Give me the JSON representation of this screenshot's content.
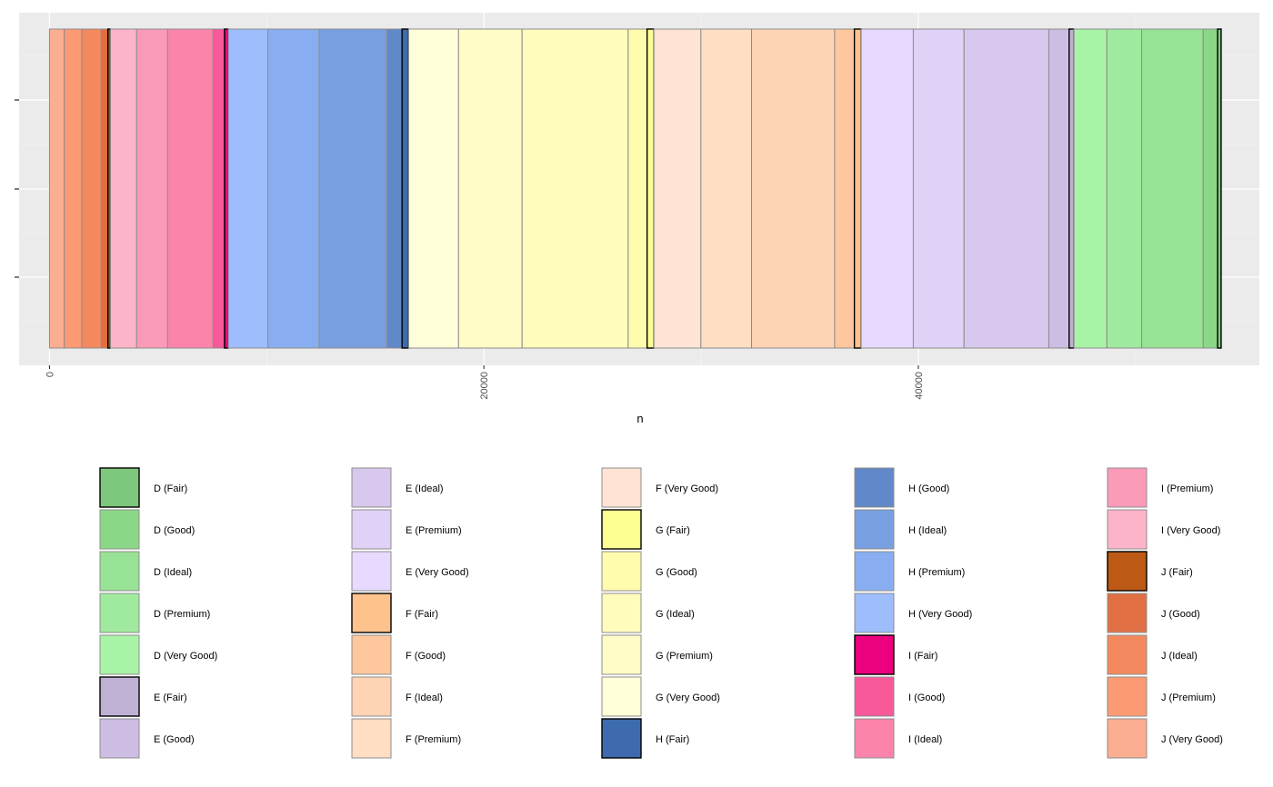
{
  "chart_data": {
    "type": "bar",
    "orientation": "horizontal-stacked",
    "xlabel": "n",
    "ylabel": "",
    "xlim": [
      -1400,
      55700
    ],
    "x_ticks": [
      0,
      20000,
      40000
    ],
    "x_tick_labels": [
      "0",
      "20000",
      "40000"
    ],
    "grid": true,
    "legend_position": "bottom",
    "series": [
      {
        "name": "J (Very Good)",
        "value": 678,
        "color": "#FCAE91"
      },
      {
        "name": "J (Premium)",
        "value": 808,
        "color": "#FB9A73"
      },
      {
        "name": "J (Ideal)",
        "value": 896,
        "color": "#F4895F"
      },
      {
        "name": "J (Good)",
        "value": 307,
        "color": "#E07044"
      },
      {
        "name": "J (Fair)",
        "value": 119,
        "color": "#BD5A16"
      },
      {
        "name": "I (Very Good)",
        "value": 1204,
        "color": "#FDB4C8"
      },
      {
        "name": "I (Premium)",
        "value": 1428,
        "color": "#FC9BB8"
      },
      {
        "name": "I (Ideal)",
        "value": 2093,
        "color": "#FC84AB"
      },
      {
        "name": "I (Good)",
        "value": 522,
        "color": "#F75999"
      },
      {
        "name": "I (Fair)",
        "value": 175,
        "color": "#EB007E"
      },
      {
        "name": "H (Very Good)",
        "value": 1824,
        "color": "#9EBDFD"
      },
      {
        "name": "H (Premium)",
        "value": 2360,
        "color": "#88AEF1"
      },
      {
        "name": "H (Ideal)",
        "value": 3115,
        "color": "#789FE0"
      },
      {
        "name": "H (Good)",
        "value": 702,
        "color": "#6188C9"
      },
      {
        "name": "H (Fair)",
        "value": 303,
        "color": "#3D6BAD"
      },
      {
        "name": "G (Very Good)",
        "value": 2299,
        "color": "#FFFFD9"
      },
      {
        "name": "G (Premium)",
        "value": 2924,
        "color": "#FFFCC8"
      },
      {
        "name": "G (Ideal)",
        "value": 4884,
        "color": "#FFFCBC"
      },
      {
        "name": "G (Good)",
        "value": 871,
        "color": "#FFFCAE"
      },
      {
        "name": "G (Fair)",
        "value": 314,
        "color": "#FDFE94"
      },
      {
        "name": "F (Very Good)",
        "value": 2164,
        "color": "#FFE3D4"
      },
      {
        "name": "F (Premium)",
        "value": 2331,
        "color": "#FFDEC4"
      },
      {
        "name": "F (Ideal)",
        "value": 3826,
        "color": "#FFD4B4"
      },
      {
        "name": "F (Good)",
        "value": 909,
        "color": "#FFC79D"
      },
      {
        "name": "F (Fair)",
        "value": 312,
        "color": "#FEC28C"
      },
      {
        "name": "E (Very Good)",
        "value": 2400,
        "color": "#E8D9FE"
      },
      {
        "name": "E (Premium)",
        "value": 2337,
        "color": "#E0D1F6"
      },
      {
        "name": "E (Ideal)",
        "value": 3903,
        "color": "#D8C8EE"
      },
      {
        "name": "E (Good)",
        "value": 933,
        "color": "#CDBDE3"
      },
      {
        "name": "E (Fair)",
        "value": 224,
        "color": "#BFB1D4"
      },
      {
        "name": "D (Very Good)",
        "value": 1513,
        "color": "#A9F3A7"
      },
      {
        "name": "D (Premium)",
        "value": 1603,
        "color": "#A0EA9F"
      },
      {
        "name": "D (Ideal)",
        "value": 2834,
        "color": "#98E295"
      },
      {
        "name": "D (Good)",
        "value": 662,
        "color": "#8BD788"
      },
      {
        "name": "D (Fair)",
        "value": 163,
        "color": "#7EC87E"
      }
    ],
    "legend_order": [
      "D (Fair)",
      "D (Good)",
      "D (Ideal)",
      "D (Premium)",
      "D (Very Good)",
      "E (Fair)",
      "E (Good)",
      "E (Ideal)",
      "E (Premium)",
      "E (Very Good)",
      "F (Fair)",
      "F (Good)",
      "F (Ideal)",
      "F (Premium)",
      "F (Very Good)",
      "G (Fair)",
      "G (Good)",
      "G (Ideal)",
      "G (Premium)",
      "G (Very Good)",
      "H (Fair)",
      "H (Good)",
      "H (Ideal)",
      "H (Premium)",
      "H (Very Good)",
      "I (Fair)",
      "I (Good)",
      "I (Ideal)",
      "I (Premium)",
      "I (Very Good)",
      "J (Fair)",
      "J (Good)",
      "J (Ideal)",
      "J (Premium)",
      "J (Very Good)"
    ],
    "highlighted": [
      "D (Fair)",
      "E (Fair)",
      "F (Fair)",
      "G (Fair)",
      "H (Fair)",
      "I (Fair)",
      "J (Fair)"
    ]
  }
}
